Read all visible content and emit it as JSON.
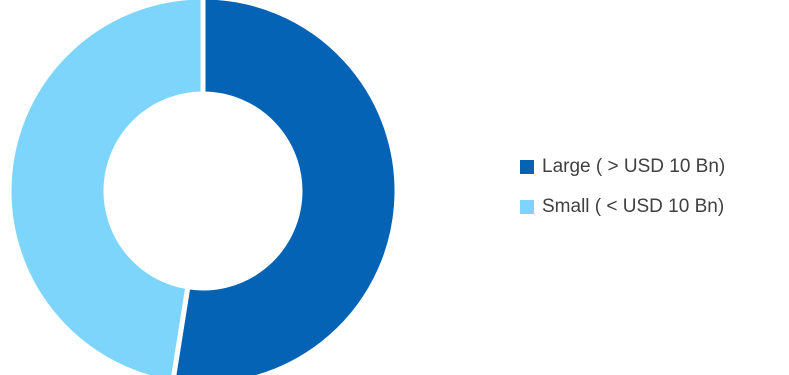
{
  "chart_data": {
    "type": "pie",
    "variant": "donut",
    "title": "",
    "categories": [
      "Large ( > USD 10 Bn)",
      "Small ( < USD 10 Bn)"
    ],
    "values": [
      52.5,
      47.5
    ],
    "unit": "%",
    "colors": [
      "#0563B6",
      "#7DD5FB"
    ],
    "legend_position": "right"
  }
}
